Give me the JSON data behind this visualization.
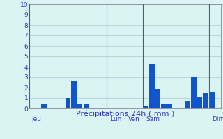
{
  "title": "Précipitations 24h ( mm )",
  "background_color": "#daf4f4",
  "bar_color": "#1155cc",
  "grid_color": "#aacccc",
  "text_color": "#3333cc",
  "ylim": [
    0,
    10
  ],
  "yticks": [
    0,
    1,
    2,
    3,
    4,
    5,
    6,
    7,
    8,
    9,
    10
  ],
  "bars": [
    {
      "x": 2,
      "height": 0.5
    },
    {
      "x": 6,
      "height": 1.0
    },
    {
      "x": 7,
      "height": 2.65
    },
    {
      "x": 8,
      "height": 0.38
    },
    {
      "x": 9,
      "height": 0.38
    },
    {
      "x": 19,
      "height": 0.3
    },
    {
      "x": 20,
      "height": 4.3
    },
    {
      "x": 21,
      "height": 1.85
    },
    {
      "x": 22,
      "height": 0.5
    },
    {
      "x": 23,
      "height": 0.45
    },
    {
      "x": 26,
      "height": 0.72
    },
    {
      "x": 27,
      "height": 3.0
    },
    {
      "x": 28,
      "height": 1.1
    },
    {
      "x": 29,
      "height": 1.5
    },
    {
      "x": 30,
      "height": 1.6
    }
  ],
  "day_labels": [
    {
      "label": "Jeu",
      "x": 0
    },
    {
      "label": "Lun",
      "x": 13
    },
    {
      "label": "Ven",
      "x": 16
    },
    {
      "label": "Sam",
      "x": 19
    },
    {
      "label": "Dim",
      "x": 30
    }
  ],
  "vlines": [
    0,
    13,
    19,
    30
  ],
  "total_bars": 32,
  "xlim_left": -0.5,
  "xlim_right": 31.5
}
